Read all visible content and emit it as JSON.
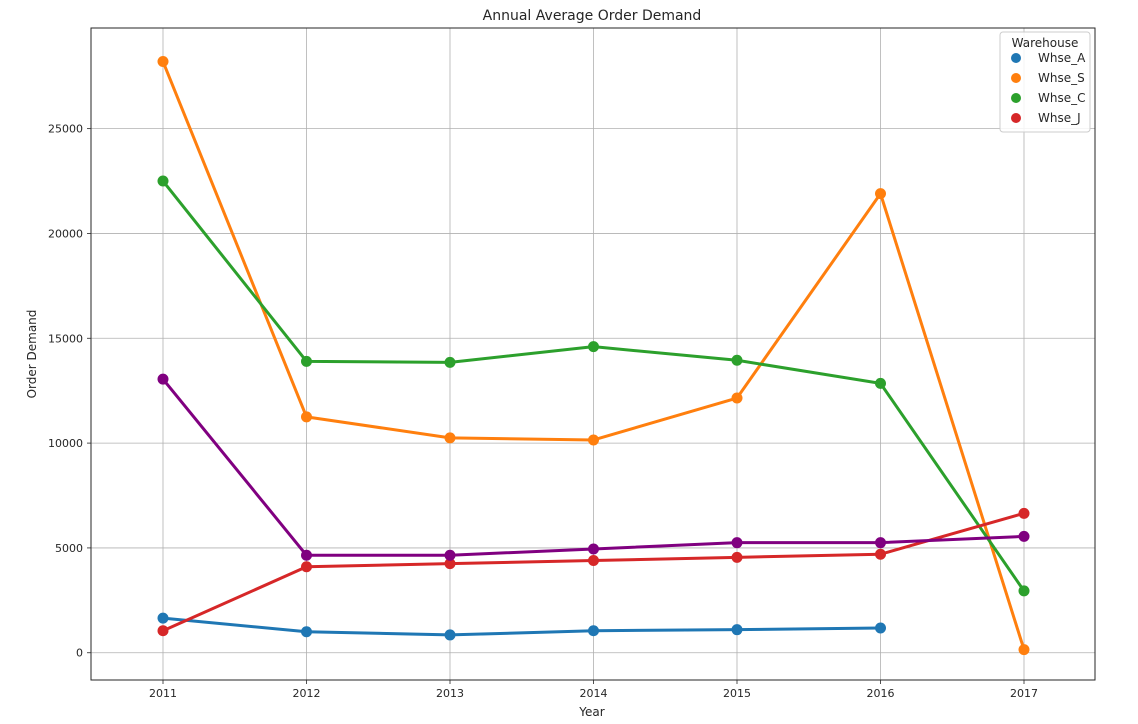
{
  "chart_data": {
    "type": "line",
    "title": "Annual Average Order Demand",
    "xlabel": "Year",
    "ylabel": "Order Demand",
    "categories": [
      "2011",
      "2012",
      "2013",
      "2014",
      "2015",
      "2016",
      "2017"
    ],
    "ylim": [
      -1300,
      29800
    ],
    "yticks": [
      0,
      5000,
      10000,
      15000,
      20000,
      25000
    ],
    "grid": true,
    "legend": {
      "title": "Warehouse",
      "placement": "top-right",
      "entries": [
        "Whse_A",
        "Whse_S",
        "Whse_C",
        "Whse_J"
      ]
    },
    "series": [
      {
        "name": "Whse_A",
        "color": "#1f77b4",
        "values": [
          1650,
          1000,
          850,
          1050,
          1100,
          1180,
          null
        ]
      },
      {
        "name": "Whse_S",
        "color": "#ff7f0e",
        "values": [
          28200,
          11250,
          10250,
          10150,
          12150,
          21900,
          150
        ]
      },
      {
        "name": "Whse_C",
        "color": "#2ca02c",
        "values": [
          22500,
          13900,
          13850,
          14600,
          13950,
          12850,
          2950
        ]
      },
      {
        "name": "Whse_J",
        "color": "#d62728",
        "values": [
          1050,
          4100,
          4250,
          4400,
          4550,
          4700,
          6650
        ]
      },
      {
        "color": "#800080",
        "values": [
          13050,
          4650,
          4650,
          4950,
          5250,
          5250,
          5550
        ]
      }
    ]
  }
}
